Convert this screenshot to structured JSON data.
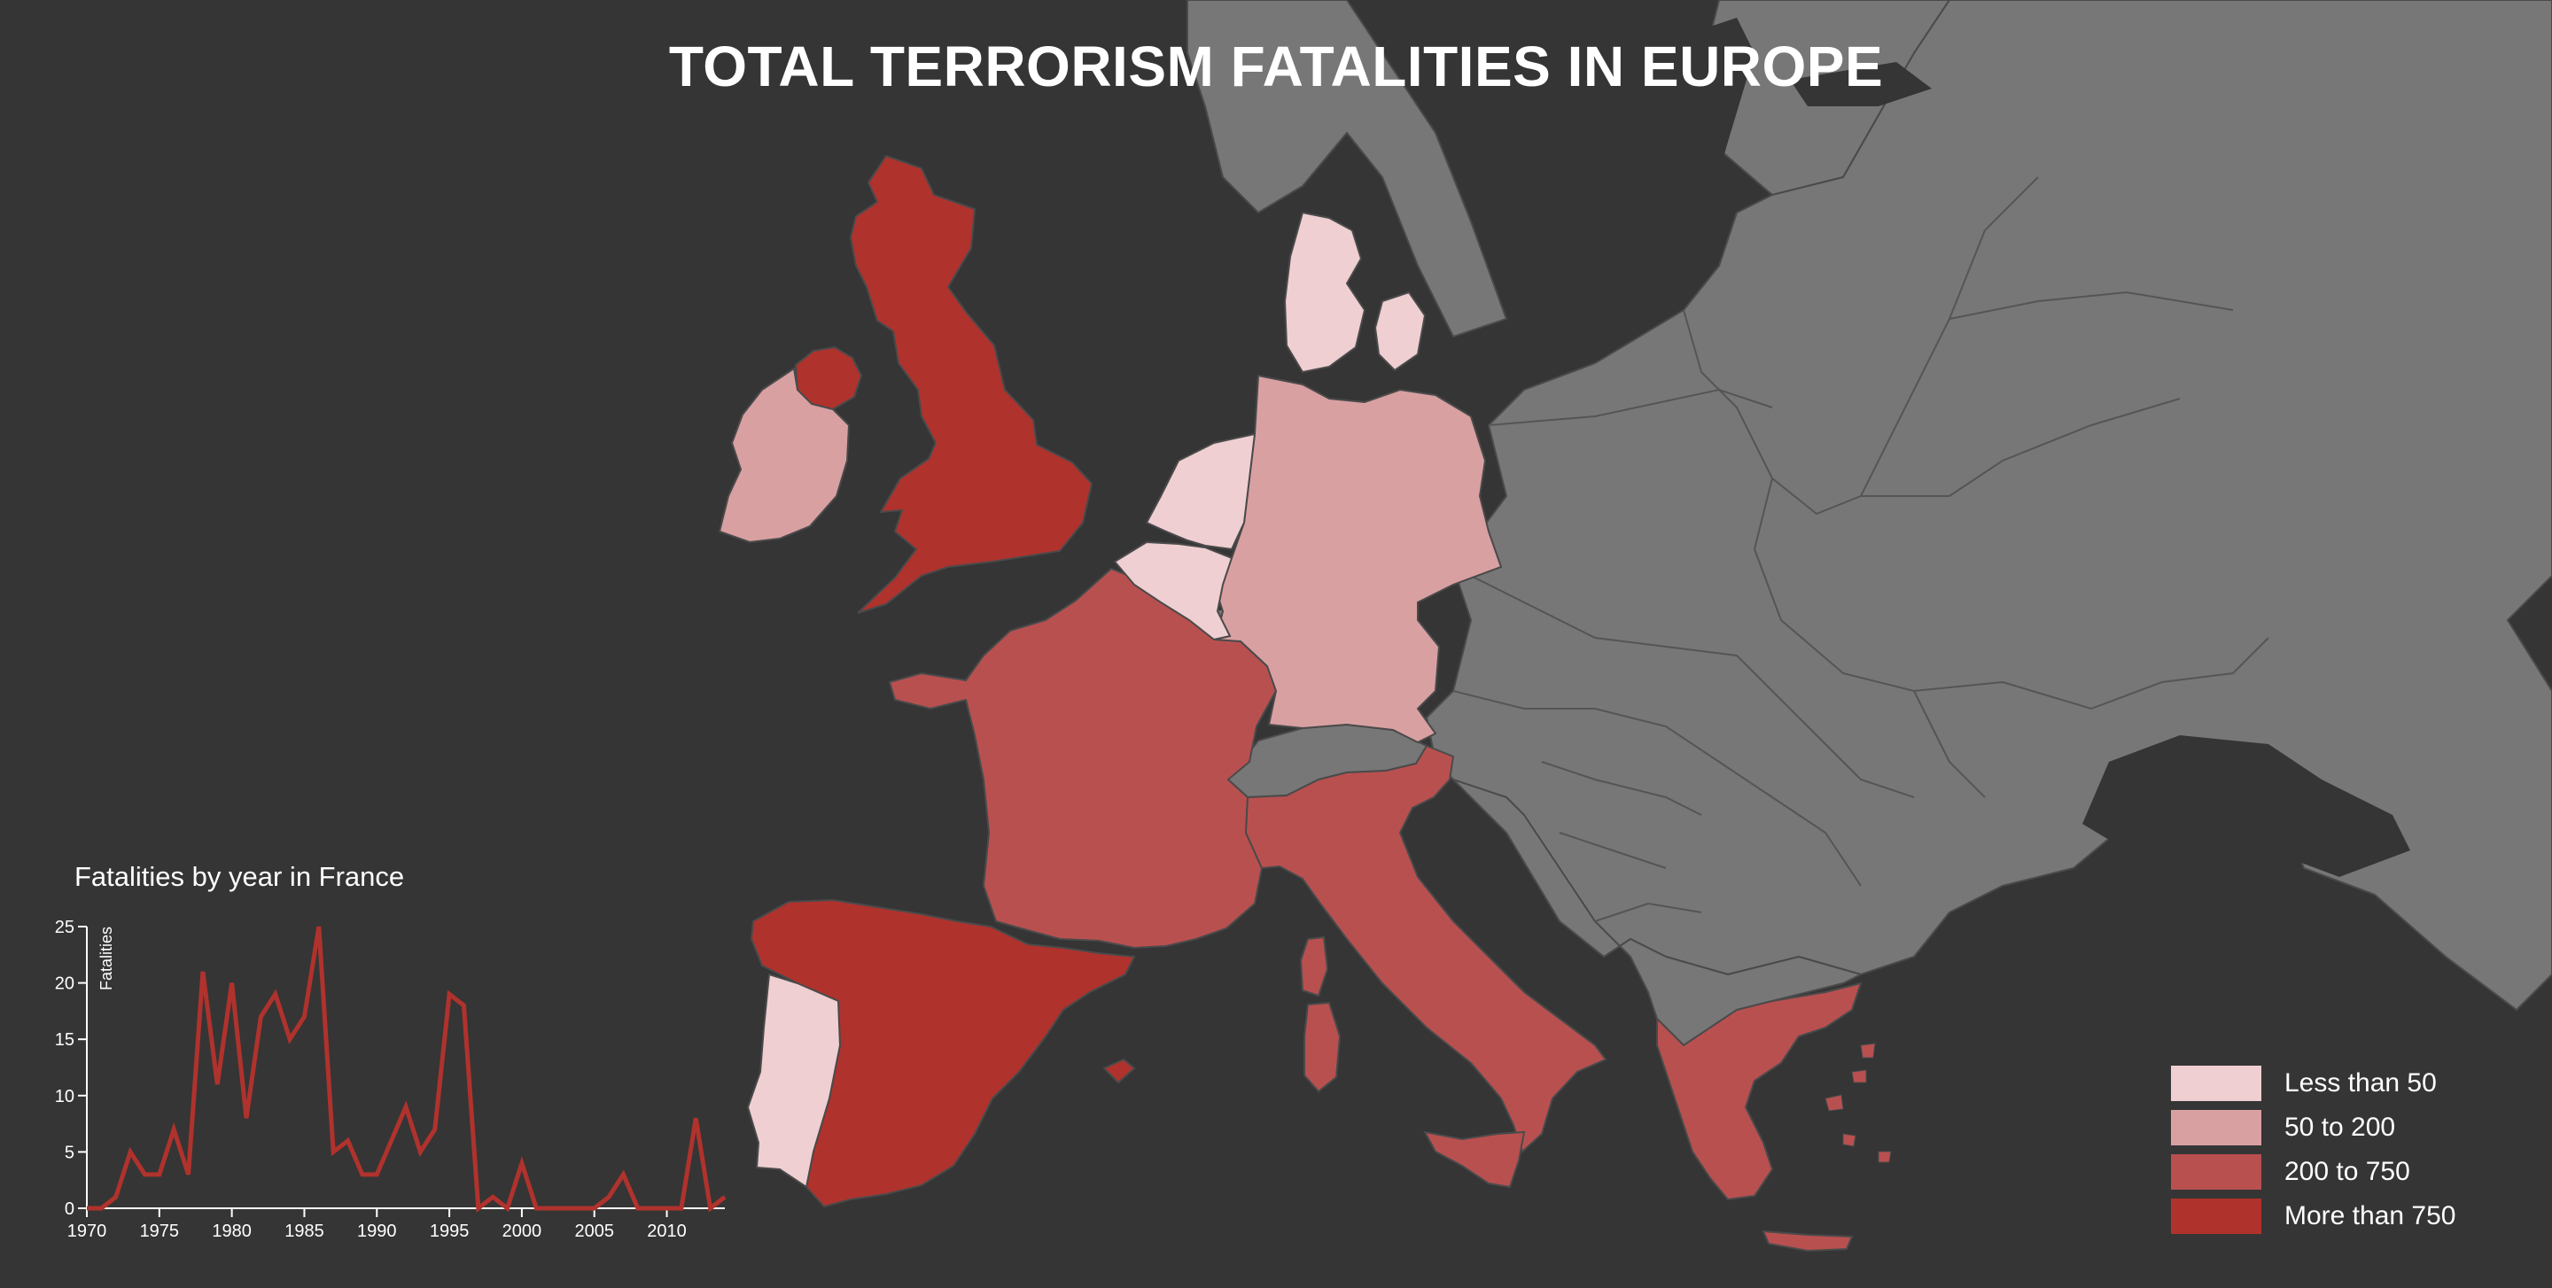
{
  "title": "TOTAL TERRORISM FATALITIES IN EUROPE",
  "colors": {
    "background": "#353535",
    "no_data": "#777777",
    "border": "#4a4a4a",
    "less_than_50": "#efcfd2",
    "50_to_200": "#d9a0a2",
    "200_to_750": "#b95050",
    "more_than_750": "#b0322d",
    "line": "#b0322d"
  },
  "map": {
    "regions": [
      {
        "name": "United Kingdom",
        "category": "more_than_750"
      },
      {
        "name": "Ireland",
        "category": "50_to_200"
      },
      {
        "name": "France",
        "category": "200_to_750"
      },
      {
        "name": "Spain",
        "category": "more_than_750"
      },
      {
        "name": "Portugal",
        "category": "less_than_50"
      },
      {
        "name": "Italy",
        "category": "200_to_750"
      },
      {
        "name": "Germany",
        "category": "50_to_200"
      },
      {
        "name": "Netherlands",
        "category": "less_than_50"
      },
      {
        "name": "Belgium",
        "category": "less_than_50"
      },
      {
        "name": "Denmark",
        "category": "less_than_50"
      },
      {
        "name": "Greece",
        "category": "200_to_750"
      }
    ]
  },
  "legend": {
    "items": [
      {
        "label": "Less than 50",
        "color": "#efcfd2"
      },
      {
        "label": "50 to 200",
        "color": "#d9a0a2"
      },
      {
        "label": "200 to 750",
        "color": "#b95050"
      },
      {
        "label": "More than 750",
        "color": "#b0322d"
      }
    ]
  },
  "chart_title": "Fatalities by year in France",
  "chart_data": {
    "type": "line",
    "title": "Fatalities by year in France",
    "xlabel": "",
    "ylabel": "Fatalities",
    "xlim": [
      1970,
      2014
    ],
    "ylim": [
      0,
      25
    ],
    "x_ticks": [
      1970,
      1975,
      1980,
      1985,
      1990,
      1995,
      2000,
      2005,
      2010
    ],
    "y_ticks": [
      0,
      5,
      10,
      15,
      20,
      25
    ],
    "grid": false,
    "series": [
      {
        "x": [
          1970,
          1971,
          1972,
          1973,
          1974,
          1975,
          1976,
          1977,
          1978,
          1979,
          1980,
          1981,
          1982,
          1983,
          1984,
          1985,
          1986,
          1987,
          1988,
          1989,
          1990,
          1991,
          1992,
          1993,
          1994,
          1995,
          1996,
          1997,
          1998,
          1999,
          2000,
          2001,
          2002,
          2003,
          2004,
          2005,
          2006,
          2007,
          2008,
          2009,
          2010,
          2011,
          2012,
          2013,
          2014
        ],
        "values": [
          0,
          0,
          1,
          5,
          3,
          3,
          7,
          3,
          21,
          11,
          20,
          8,
          17,
          19,
          15,
          17,
          25,
          5,
          6,
          3,
          3,
          6,
          9,
          5,
          7,
          19,
          18,
          0,
          1,
          0,
          4,
          0,
          0,
          0,
          0,
          0,
          1,
          3,
          0,
          0,
          0,
          0,
          8,
          0,
          1
        ]
      }
    ]
  }
}
